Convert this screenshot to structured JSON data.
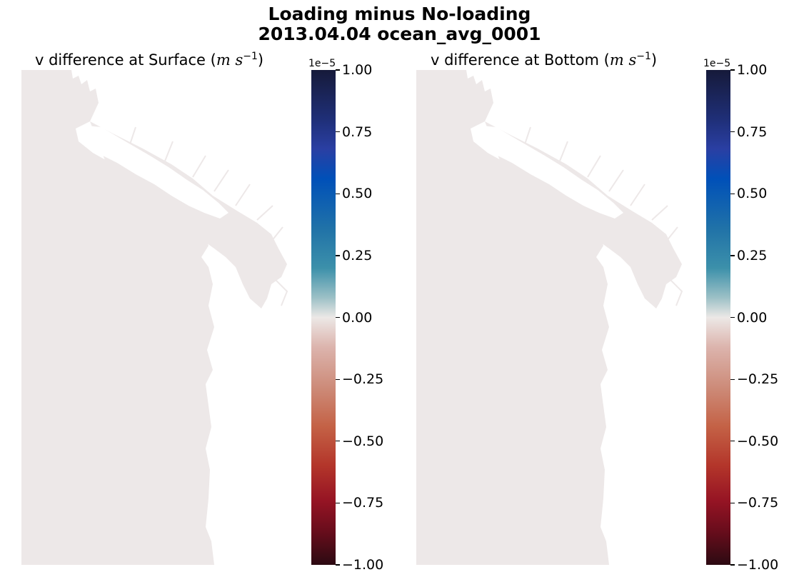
{
  "suptitle_line1": "Loading minus No-loading",
  "suptitle_line2": "2013.04.04 ocean_avg_0001",
  "colors": {
    "field": "#ede8e8",
    "land": "#ffffff"
  },
  "chart_data": [
    {
      "type": "heatmap",
      "title_prefix": "v difference at Surface (",
      "title_unit_m": "m",
      "title_unit_s": "s",
      "title_unit_exp": "−1",
      "title_suffix": ")",
      "colorbar": {
        "offset_label": "1e−5",
        "range": [
          -1.0,
          1.0
        ],
        "ticks": [
          "1.00",
          "0.75",
          "0.50",
          "0.25",
          "0.00",
          "−0.25",
          "−0.50",
          "−0.75",
          "−1.00"
        ],
        "colormap": "balance (blue positive, red negative)"
      },
      "values_summary": "field uniformly ~0.00 (no visible difference)"
    },
    {
      "type": "heatmap",
      "title_prefix": "v difference at Bottom (",
      "title_unit_m": "m",
      "title_unit_s": "s",
      "title_unit_exp": "−1",
      "title_suffix": ")",
      "colorbar": {
        "offset_label": "1e−5",
        "range": [
          -1.0,
          1.0
        ],
        "ticks": [
          "1.00",
          "0.75",
          "0.50",
          "0.25",
          "0.00",
          "−0.25",
          "−0.50",
          "−0.75",
          "−1.00"
        ],
        "colormap": "balance (blue positive, red negative)"
      },
      "values_summary": "field uniformly ~0.00 (no visible difference)"
    }
  ]
}
